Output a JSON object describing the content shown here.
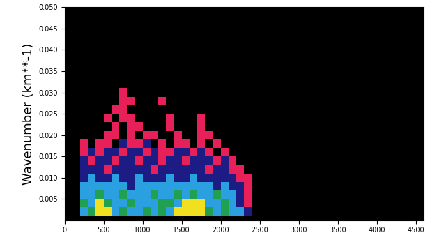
{
  "chart_data": {
    "type": "heatmap",
    "y_label": "Wavenumber (km**-1)",
    "xlim": [
      0,
      4600
    ],
    "xticks": [
      0,
      500,
      1000,
      1500,
      2000,
      2500,
      3000,
      3500,
      4000,
      4500
    ],
    "ylim": [
      0,
      0.05
    ],
    "yticks": [
      0.005,
      {
        "value": 0.01,
        "label": "0.010"
      },
      0.015,
      {
        "value": 0.02,
        "label": "0.020"
      },
      0.025,
      {
        "value": 0.03,
        "label": "0.030"
      },
      0.035,
      {
        "value": 0.04,
        "label": "0.040"
      },
      0.045,
      {
        "value": 0.05,
        "label": "0.050"
      }
    ],
    "x_edges": [
      200,
      300,
      400,
      500,
      600,
      700,
      800,
      900,
      1000,
      1100,
      1200,
      1300,
      1400,
      1500,
      1600,
      1700,
      1800,
      1900,
      2000,
      2100,
      2200,
      2300,
      2400
    ],
    "y_edges": [
      0.001,
      0.003,
      0.005,
      0.007,
      0.009,
      0.011,
      0.013,
      0.015,
      0.017,
      0.019,
      0.021,
      0.023,
      0.025,
      0.027,
      0.029,
      0.031
    ],
    "colors": [
      "#000000",
      "#e8205a",
      "#1c1c84",
      "#2aa0e0",
      "#20a050",
      "#f0e020"
    ],
    "cells": [
      [
        3,
        4,
        5,
        5,
        3,
        4,
        3,
        3,
        4,
        3,
        4,
        3,
        5,
        5,
        5,
        5,
        4,
        3,
        4,
        3,
        3,
        2
      ],
      [
        4,
        3,
        5,
        4,
        3,
        3,
        4,
        3,
        3,
        3,
        4,
        4,
        3,
        5,
        5,
        5,
        3,
        3,
        4,
        3,
        2,
        1
      ],
      [
        3,
        3,
        4,
        3,
        3,
        4,
        3,
        3,
        3,
        4,
        3,
        3,
        4,
        3,
        4,
        3,
        3,
        4,
        3,
        3,
        2,
        1
      ],
      [
        3,
        3,
        3,
        3,
        3,
        3,
        2,
        3,
        3,
        3,
        3,
        3,
        3,
        3,
        3,
        3,
        3,
        2,
        3,
        2,
        2,
        1
      ],
      [
        2,
        3,
        2,
        2,
        3,
        2,
        2,
        3,
        2,
        2,
        2,
        3,
        2,
        2,
        3,
        2,
        2,
        2,
        2,
        2,
        1,
        1
      ],
      [
        2,
        2,
        2,
        1,
        2,
        2,
        2,
        2,
        2,
        1,
        2,
        2,
        2,
        2,
        2,
        2,
        1,
        2,
        2,
        1,
        1,
        0
      ],
      [
        2,
        1,
        2,
        2,
        1,
        2,
        2,
        1,
        2,
        2,
        1,
        2,
        2,
        1,
        2,
        2,
        2,
        1,
        2,
        1,
        0,
        0
      ],
      [
        1,
        2,
        1,
        2,
        2,
        1,
        2,
        2,
        1,
        2,
        1,
        1,
        2,
        2,
        1,
        2,
        1,
        0,
        1,
        0,
        0,
        0
      ],
      [
        1,
        0,
        1,
        1,
        0,
        2,
        1,
        1,
        2,
        0,
        1,
        0,
        1,
        1,
        0,
        1,
        0,
        1,
        0,
        0,
        0,
        0
      ],
      [
        0,
        0,
        0,
        1,
        1,
        0,
        1,
        0,
        1,
        1,
        0,
        0,
        1,
        0,
        0,
        1,
        1,
        0,
        0,
        0,
        0,
        0
      ],
      [
        0,
        0,
        0,
        0,
        1,
        0,
        1,
        1,
        0,
        0,
        0,
        1,
        0,
        0,
        0,
        1,
        0,
        0,
        0,
        0,
        0,
        0
      ],
      [
        0,
        0,
        0,
        1,
        0,
        1,
        1,
        0,
        0,
        0,
        0,
        1,
        0,
        0,
        0,
        1,
        0,
        0,
        0,
        0,
        0,
        0
      ],
      [
        0,
        0,
        0,
        0,
        1,
        1,
        0,
        0,
        0,
        0,
        0,
        0,
        0,
        0,
        0,
        0,
        0,
        0,
        0,
        0,
        0,
        0
      ],
      [
        0,
        0,
        0,
        0,
        0,
        1,
        1,
        0,
        0,
        0,
        1,
        0,
        0,
        0,
        0,
        0,
        0,
        0,
        0,
        0,
        0,
        0
      ],
      [
        0,
        0,
        0,
        0,
        0,
        1,
        0,
        0,
        0,
        0,
        0,
        0,
        0,
        0,
        0,
        0,
        0,
        0,
        0,
        0,
        0,
        0
      ]
    ]
  }
}
